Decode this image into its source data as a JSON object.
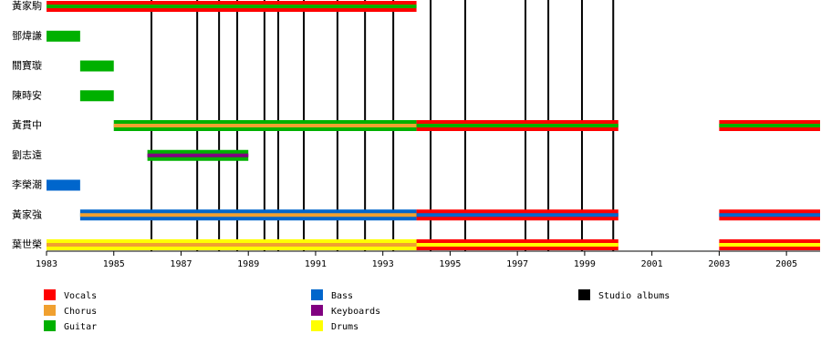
{
  "chart_data": {
    "type": "timeline",
    "xlim": [
      1983,
      2006
    ],
    "xticks": [
      1983,
      1985,
      1987,
      1989,
      1991,
      1993,
      1995,
      1997,
      1999,
      2001,
      2003,
      2005
    ],
    "roles": [
      {
        "name": "Vocals",
        "color": "#ff0000"
      },
      {
        "name": "Chorus",
        "color": "#f0a030"
      },
      {
        "name": "Guitar",
        "color": "#00b000"
      },
      {
        "name": "Bass",
        "color": "#0066cc"
      },
      {
        "name": "Keyboards",
        "color": "#800080"
      },
      {
        "name": "Drums",
        "color": "#ffff00"
      }
    ],
    "albums_label": "Studio albums",
    "albums_color": "#000000",
    "albums": [
      1986.12,
      1987.48,
      1988.13,
      1988.67,
      1989.48,
      1989.89,
      1990.65,
      1991.65,
      1992.47,
      1993.31,
      1994.42,
      1995.45,
      1997.24,
      1997.92,
      1998.92,
      1999.85
    ],
    "members": [
      {
        "name": "黃家駒",
        "bars": [
          {
            "start": 1983,
            "end": 1994,
            "role": "Vocals",
            "stripe": "Guitar"
          }
        ]
      },
      {
        "name": "鄧煒謙",
        "bars": [
          {
            "start": 1983,
            "end": 1984,
            "role": "Guitar"
          }
        ]
      },
      {
        "name": "關寶璇",
        "bars": [
          {
            "start": 1984,
            "end": 1985,
            "role": "Guitar"
          }
        ]
      },
      {
        "name": "陳時安",
        "bars": [
          {
            "start": 1984,
            "end": 1985,
            "role": "Guitar"
          }
        ]
      },
      {
        "name": "黃貫中",
        "bars": [
          {
            "start": 1985,
            "end": 1994,
            "role": "Guitar",
            "stripe": "Chorus"
          },
          {
            "start": 1994,
            "end": 2000,
            "role": "Vocals",
            "stripe": "Guitar"
          },
          {
            "start": 2003,
            "end": 2006,
            "role": "Vocals",
            "stripe": "Guitar"
          }
        ]
      },
      {
        "name": "劉志遠",
        "bars": [
          {
            "start": 1986,
            "end": 1989,
            "role": "Guitar",
            "stripe": "Keyboards"
          }
        ]
      },
      {
        "name": "李榮潮",
        "bars": [
          {
            "start": 1983,
            "end": 1984,
            "role": "Bass"
          }
        ]
      },
      {
        "name": "黃家強",
        "bars": [
          {
            "start": 1984,
            "end": 1994,
            "role": "Bass",
            "stripe": "Chorus"
          },
          {
            "start": 1994,
            "end": 2000,
            "role": "Vocals",
            "stripe": "Bass"
          },
          {
            "start": 2003,
            "end": 2006,
            "role": "Vocals",
            "stripe": "Bass"
          }
        ]
      },
      {
        "name": "葉世榮",
        "bars": [
          {
            "start": 1983,
            "end": 1994,
            "role": "Drums",
            "stripe": "Chorus"
          },
          {
            "start": 1994,
            "end": 2000,
            "role": "Vocals",
            "stripe": "Drums"
          },
          {
            "start": 2003,
            "end": 2006,
            "role": "Vocals",
            "stripe": "Drums"
          }
        ]
      }
    ]
  }
}
